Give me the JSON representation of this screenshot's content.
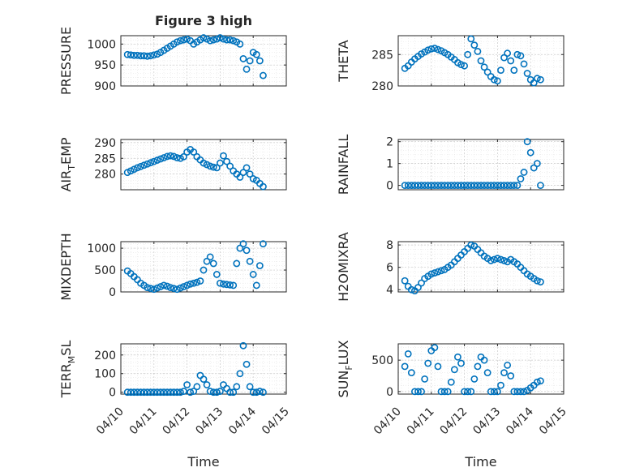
{
  "figure": {
    "title": "Figure 3 high",
    "xlabel": "Time",
    "x_tick_labels": [
      "04/10",
      "04/11",
      "04/12",
      "04/13",
      "04/14",
      "04/15"
    ],
    "marker_color": "#0072BD"
  },
  "chart_data": [
    {
      "type": "scatter",
      "ylabel": "PRESSURE",
      "ylabel_sub": "",
      "ylabel_tail": "",
      "ylim": [
        900,
        1020
      ],
      "yticks": [
        900,
        950,
        1000
      ],
      "xlim": [
        0,
        5
      ],
      "x": [
        0.2,
        0.3,
        0.4,
        0.5,
        0.6,
        0.7,
        0.8,
        0.9,
        1.0,
        1.1,
        1.2,
        1.3,
        1.4,
        1.5,
        1.6,
        1.7,
        1.8,
        1.9,
        2.0,
        2.1,
        2.2,
        2.3,
        2.4,
        2.5,
        2.6,
        2.7,
        2.8,
        2.9,
        3.0,
        3.1,
        3.2,
        3.3,
        3.4,
        3.5,
        3.6,
        3.7,
        3.8,
        3.9,
        4.0,
        4.1,
        4.2,
        4.3
      ],
      "y": [
        975,
        974,
        973,
        973,
        972,
        972,
        971,
        972,
        974,
        976,
        980,
        985,
        990,
        995,
        1000,
        1005,
        1008,
        1010,
        1012,
        1008,
        1000,
        1005,
        1010,
        1015,
        1012,
        1008,
        1010,
        1012,
        1015,
        1012,
        1010,
        1010,
        1008,
        1005,
        1000,
        965,
        940,
        960,
        980,
        975,
        960,
        925
      ]
    },
    {
      "type": "scatter",
      "ylabel": "THETA",
      "ylabel_sub": "",
      "ylabel_tail": "",
      "ylim": [
        280,
        288
      ],
      "yticks": [
        280,
        285
      ],
      "xlim": [
        0,
        5
      ],
      "x": [
        0.2,
        0.3,
        0.4,
        0.5,
        0.6,
        0.7,
        0.8,
        0.9,
        1.0,
        1.1,
        1.2,
        1.3,
        1.4,
        1.5,
        1.6,
        1.7,
        1.8,
        1.9,
        2.0,
        2.1,
        2.2,
        2.3,
        2.4,
        2.5,
        2.6,
        2.7,
        2.8,
        2.9,
        3.0,
        3.1,
        3.2,
        3.3,
        3.4,
        3.5,
        3.6,
        3.7,
        3.8,
        3.9,
        4.0,
        4.1,
        4.2,
        4.3
      ],
      "y": [
        282.8,
        283.2,
        283.8,
        284.3,
        284.7,
        285.1,
        285.4,
        285.7,
        285.9,
        286.0,
        285.8,
        285.6,
        285.3,
        285.0,
        284.6,
        284.2,
        283.7,
        283.4,
        283.2,
        285.0,
        287.5,
        286.5,
        285.5,
        284.0,
        283.0,
        282.2,
        281.5,
        281.0,
        280.8,
        282.5,
        284.5,
        285.2,
        284.0,
        282.5,
        285.0,
        284.8,
        283.5,
        282.0,
        281.0,
        280.5,
        281.2,
        281.0
      ]
    },
    {
      "type": "scatter",
      "ylabel": "AIR",
      "ylabel_sub": "T",
      "ylabel_tail": "EMP",
      "ylim": [
        275,
        291
      ],
      "yticks": [
        280,
        285,
        290
      ],
      "xlim": [
        0,
        5
      ],
      "x": [
        0.2,
        0.3,
        0.4,
        0.5,
        0.6,
        0.7,
        0.8,
        0.9,
        1.0,
        1.1,
        1.2,
        1.3,
        1.4,
        1.5,
        1.6,
        1.7,
        1.8,
        1.9,
        2.0,
        2.1,
        2.2,
        2.3,
        2.4,
        2.5,
        2.6,
        2.7,
        2.8,
        2.9,
        3.0,
        3.1,
        3.2,
        3.3,
        3.4,
        3.5,
        3.6,
        3.7,
        3.8,
        3.9,
        4.0,
        4.1,
        4.2,
        4.3
      ],
      "y": [
        280.5,
        281.0,
        281.5,
        282.0,
        282.4,
        282.8,
        283.2,
        283.6,
        284.0,
        284.4,
        284.8,
        285.2,
        285.6,
        285.8,
        285.6,
        285.2,
        285.0,
        285.5,
        287.0,
        287.8,
        287.0,
        285.5,
        284.5,
        283.5,
        283.0,
        282.5,
        282.2,
        282.0,
        283.5,
        285.8,
        284.0,
        282.5,
        281.0,
        280.0,
        279.0,
        280.5,
        282.0,
        280.0,
        278.5,
        278.0,
        277.0,
        276.0
      ]
    },
    {
      "type": "scatter",
      "ylabel": "RAINFALL",
      "ylabel_sub": "",
      "ylabel_tail": "",
      "ylim": [
        -0.2,
        2.1
      ],
      "yticks": [
        0,
        1,
        2
      ],
      "xlim": [
        0,
        5
      ],
      "x": [
        0.2,
        0.3,
        0.4,
        0.5,
        0.6,
        0.7,
        0.8,
        0.9,
        1.0,
        1.1,
        1.2,
        1.3,
        1.4,
        1.5,
        1.6,
        1.7,
        1.8,
        1.9,
        2.0,
        2.1,
        2.2,
        2.3,
        2.4,
        2.5,
        2.6,
        2.7,
        2.8,
        2.9,
        3.0,
        3.1,
        3.2,
        3.3,
        3.4,
        3.5,
        3.6,
        3.7,
        3.8,
        3.9,
        4.0,
        4.1,
        4.2,
        4.3
      ],
      "y": [
        0,
        0,
        0,
        0,
        0,
        0,
        0,
        0,
        0,
        0,
        0,
        0,
        0,
        0,
        0,
        0,
        0,
        0,
        0,
        0,
        0,
        0,
        0,
        0,
        0,
        0,
        0,
        0,
        0,
        0,
        0,
        0,
        0,
        0,
        0,
        0.3,
        0.6,
        2.0,
        1.5,
        0.8,
        1.0,
        0
      ]
    },
    {
      "type": "scatter",
      "ylabel": "MIXDEPTH",
      "ylabel_sub": "",
      "ylabel_tail": "",
      "ylim": [
        0,
        1150
      ],
      "yticks": [
        0,
        500,
        1000
      ],
      "xlim": [
        0,
        5
      ],
      "x": [
        0.2,
        0.3,
        0.4,
        0.5,
        0.6,
        0.7,
        0.8,
        0.9,
        1.0,
        1.1,
        1.2,
        1.3,
        1.4,
        1.5,
        1.6,
        1.7,
        1.8,
        1.9,
        2.0,
        2.1,
        2.2,
        2.3,
        2.4,
        2.5,
        2.6,
        2.7,
        2.8,
        2.9,
        3.0,
        3.1,
        3.2,
        3.3,
        3.4,
        3.5,
        3.6,
        3.7,
        3.8,
        3.9,
        4.0,
        4.1,
        4.2,
        4.3
      ],
      "y": [
        480,
        420,
        350,
        280,
        200,
        150,
        100,
        80,
        60,
        90,
        120,
        150,
        130,
        100,
        80,
        60,
        90,
        120,
        150,
        180,
        200,
        220,
        250,
        500,
        700,
        800,
        650,
        400,
        200,
        180,
        170,
        160,
        150,
        650,
        1000,
        1100,
        950,
        700,
        400,
        150,
        600,
        1100
      ]
    },
    {
      "type": "scatter",
      "ylabel": "H2OMIXRA",
      "ylabel_sub": "",
      "ylabel_tail": "",
      "ylim": [
        3.8,
        8.3
      ],
      "yticks": [
        4,
        6,
        8
      ],
      "xlim": [
        0,
        5
      ],
      "x": [
        0.2,
        0.3,
        0.4,
        0.5,
        0.6,
        0.7,
        0.8,
        0.9,
        1.0,
        1.1,
        1.2,
        1.3,
        1.4,
        1.5,
        1.6,
        1.7,
        1.8,
        1.9,
        2.0,
        2.1,
        2.2,
        2.3,
        2.4,
        2.5,
        2.6,
        2.7,
        2.8,
        2.9,
        3.0,
        3.1,
        3.2,
        3.3,
        3.4,
        3.5,
        3.6,
        3.7,
        3.8,
        3.9,
        4.0,
        4.1,
        4.2,
        4.3
      ],
      "y": [
        4.8,
        4.3,
        4.0,
        3.9,
        4.2,
        4.6,
        5.0,
        5.2,
        5.4,
        5.5,
        5.6,
        5.7,
        5.8,
        6.0,
        6.2,
        6.5,
        6.8,
        7.1,
        7.4,
        7.7,
        8.0,
        7.9,
        7.6,
        7.3,
        7.0,
        6.8,
        6.6,
        6.7,
        6.8,
        6.7,
        6.6,
        6.5,
        6.7,
        6.5,
        6.3,
        6.0,
        5.7,
        5.4,
        5.2,
        5.0,
        4.8,
        4.7
      ]
    },
    {
      "type": "scatter",
      "ylabel": "TERR",
      "ylabel_sub": "M",
      "ylabel_tail": "SL",
      "ylim": [
        -10,
        260
      ],
      "yticks": [
        0,
        100,
        200
      ],
      "xlim": [
        0,
        5
      ],
      "x": [
        0.2,
        0.3,
        0.4,
        0.5,
        0.6,
        0.7,
        0.8,
        0.9,
        1.0,
        1.1,
        1.2,
        1.3,
        1.4,
        1.5,
        1.6,
        1.7,
        1.8,
        1.9,
        2.0,
        2.1,
        2.2,
        2.3,
        2.4,
        2.5,
        2.6,
        2.7,
        2.8,
        2.9,
        3.0,
        3.1,
        3.2,
        3.3,
        3.4,
        3.5,
        3.6,
        3.7,
        3.8,
        3.9,
        4.0,
        4.1,
        4.2,
        4.3
      ],
      "y": [
        0,
        0,
        0,
        0,
        0,
        0,
        0,
        0,
        0,
        0,
        0,
        0,
        0,
        0,
        0,
        0,
        0,
        5,
        40,
        0,
        5,
        30,
        90,
        70,
        40,
        5,
        0,
        0,
        5,
        40,
        20,
        0,
        0,
        30,
        100,
        250,
        150,
        30,
        0,
        0,
        5,
        0
      ]
    },
    {
      "type": "scatter",
      "ylabel": "SUN",
      "ylabel_sub": "F",
      "ylabel_tail": "LUX",
      "ylim": [
        -40,
        760
      ],
      "yticks": [
        0,
        500
      ],
      "xlim": [
        0,
        5
      ],
      "x": [
        0.2,
        0.3,
        0.4,
        0.5,
        0.6,
        0.7,
        0.8,
        0.9,
        1.0,
        1.1,
        1.2,
        1.3,
        1.4,
        1.5,
        1.6,
        1.7,
        1.8,
        1.9,
        2.0,
        2.1,
        2.2,
        2.3,
        2.4,
        2.5,
        2.6,
        2.7,
        2.8,
        2.9,
        3.0,
        3.1,
        3.2,
        3.3,
        3.4,
        3.5,
        3.6,
        3.7,
        3.8,
        3.9,
        4.0,
        4.1,
        4.2,
        4.3
      ],
      "y": [
        400,
        600,
        300,
        0,
        0,
        0,
        200,
        450,
        650,
        700,
        400,
        0,
        0,
        0,
        150,
        350,
        550,
        450,
        0,
        0,
        0,
        200,
        400,
        550,
        500,
        300,
        0,
        0,
        0,
        100,
        300,
        420,
        250,
        0,
        0,
        0,
        0,
        20,
        60,
        100,
        150,
        170
      ]
    }
  ]
}
